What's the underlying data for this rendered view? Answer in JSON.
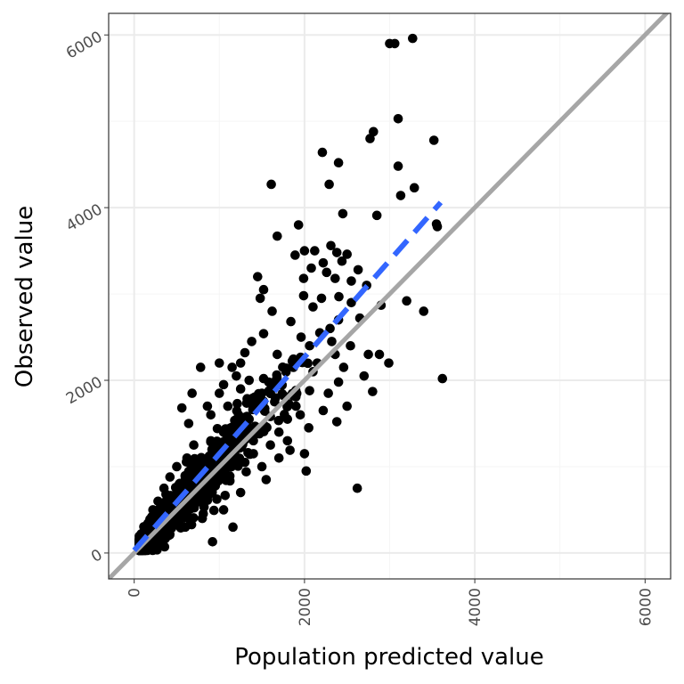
{
  "chart_data": {
    "type": "scatter",
    "title": "",
    "xlabel": "Population predicted value",
    "ylabel": "Observed value",
    "xlim": [
      -300,
      6300
    ],
    "ylim": [
      -300,
      6250
    ],
    "x_ticks": [
      0,
      2000,
      4000,
      6000
    ],
    "y_ticks": [
      0,
      2000,
      4000,
      6000
    ],
    "x_tick_labels": [
      "0",
      "2000",
      "4000",
      "6000"
    ],
    "y_tick_labels": [
      "0",
      "2000",
      "4000",
      "6000"
    ],
    "grid": true,
    "legend": "none",
    "colors": {
      "points": "#000000",
      "identity_line": "#a6a6a6",
      "fit_line": "#3366ff",
      "grid_major": "#ebebeb",
      "grid_minor": "#f5f5f5",
      "panel_border": "#333333"
    },
    "reference_lines": [
      {
        "kind": "identity",
        "slope": 1,
        "intercept": 0,
        "style": "solid"
      },
      {
        "kind": "fit",
        "x": [
          0,
          3600
        ],
        "y": [
          30,
          4060
        ],
        "style": "dashed"
      }
    ],
    "points": [
      [
        3000,
        5900
      ],
      [
        3060,
        5900
      ],
      [
        3270,
        5960
      ],
      [
        3100,
        5030
      ],
      [
        2810,
        4880
      ],
      [
        2770,
        4800
      ],
      [
        3520,
        4780
      ],
      [
        3100,
        4480
      ],
      [
        2400,
        4520
      ],
      [
        2210,
        4640
      ],
      [
        1610,
        4270
      ],
      [
        2290,
        4270
      ],
      [
        3290,
        4230
      ],
      [
        3130,
        4140
      ],
      [
        2450,
        3930
      ],
      [
        2850,
        3910
      ],
      [
        3550,
        3810
      ],
      [
        3560,
        3780
      ],
      [
        1930,
        3800
      ],
      [
        1680,
        3670
      ],
      [
        1890,
        3450
      ],
      [
        2000,
        3500
      ],
      [
        2120,
        3500
      ],
      [
        2310,
        3560
      ],
      [
        2380,
        3480
      ],
      [
        2500,
        3460
      ],
      [
        2220,
        3360
      ],
      [
        2440,
        3380
      ],
      [
        2630,
        3280
      ],
      [
        1450,
        3200
      ],
      [
        1520,
        3050
      ],
      [
        1990,
        3180
      ],
      [
        2080,
        3300
      ],
      [
        2260,
        3250
      ],
      [
        2360,
        3180
      ],
      [
        2550,
        3150
      ],
      [
        2730,
        3100
      ],
      [
        3200,
        2920
      ],
      [
        3400,
        2800
      ],
      [
        3620,
        2020
      ],
      [
        2800,
        1870
      ],
      [
        2990,
        2200
      ],
      [
        2880,
        2300
      ],
      [
        2540,
        2400
      ],
      [
        2360,
        2300
      ],
      [
        2460,
        2150
      ],
      [
        2400,
        1980
      ],
      [
        2280,
        1850
      ],
      [
        2500,
        1700
      ],
      [
        2620,
        750
      ],
      [
        2020,
        950
      ],
      [
        1830,
        1190
      ],
      [
        2000,
        1150
      ],
      [
        1470,
        1380
      ],
      [
        1160,
        300
      ],
      [
        920,
        130
      ],
      [
        1680,
        2300
      ],
      [
        1520,
        2020
      ],
      [
        1760,
        1820
      ],
      [
        1870,
        2150
      ],
      [
        2060,
        1880
      ],
      [
        2150,
        2200
      ],
      [
        2220,
        1650
      ],
      [
        2380,
        1520
      ],
      [
        1960,
        2500
      ],
      [
        1840,
        2680
      ],
      [
        1620,
        2800
      ],
      [
        1520,
        2540
      ],
      [
        1480,
        2950
      ],
      [
        2100,
        2850
      ],
      [
        1990,
        2980
      ],
      [
        2200,
        2950
      ],
      [
        2550,
        2900
      ],
      [
        2650,
        2720
      ],
      [
        2400,
        2700
      ],
      [
        2300,
        2600
      ],
      [
        1380,
        2450
      ],
      [
        1300,
        2320
      ],
      [
        1250,
        2200
      ],
      [
        1150,
        2150
      ],
      [
        1000,
        2200
      ],
      [
        780,
        2150
      ],
      [
        680,
        1850
      ],
      [
        560,
        1680
      ],
      [
        640,
        1500
      ],
      [
        1100,
        1700
      ],
      [
        900,
        1600
      ],
      [
        1250,
        1900
      ],
      [
        1400,
        1700
      ],
      [
        1600,
        1580
      ],
      [
        1700,
        1400
      ],
      [
        1800,
        1300
      ],
      [
        1950,
        1600
      ],
      [
        1700,
        1100
      ],
      [
        1500,
        1000
      ],
      [
        1250,
        700
      ],
      [
        1050,
        500
      ],
      [
        800,
        400
      ],
      [
        600,
        300
      ],
      [
        400,
        200
      ],
      [
        300,
        100
      ],
      [
        1900,
        1700
      ],
      [
        2050,
        1450
      ],
      [
        1400,
        1300
      ],
      [
        1350,
        1550
      ],
      [
        2100,
        2100
      ],
      [
        2750,
        2300
      ],
      [
        2700,
        2050
      ],
      [
        1000,
        1850
      ],
      [
        860,
        1700
      ],
      [
        1300,
        1050
      ],
      [
        1550,
        850
      ],
      [
        1150,
        1100
      ],
      [
        700,
        1250
      ],
      [
        620,
        1100
      ],
      [
        500,
        1000
      ],
      [
        420,
        880
      ],
      [
        350,
        750
      ],
      [
        280,
        600
      ],
      [
        220,
        500
      ],
      [
        900,
        1300
      ],
      [
        1050,
        1400
      ],
      [
        1220,
        1250
      ],
      [
        1400,
        1150
      ],
      [
        1600,
        1250
      ],
      [
        1800,
        1550
      ],
      [
        1650,
        1750
      ],
      [
        1500,
        1850
      ],
      [
        1350,
        2000
      ],
      [
        1200,
        2050
      ],
      [
        1050,
        1950
      ],
      [
        2320,
        2450
      ],
      [
        2180,
        2550
      ],
      [
        2060,
        2400
      ]
    ],
    "dense_clusters": [
      {
        "x_mean": 800,
        "y_mean": 800,
        "spread_along": 700,
        "spread_across": 180,
        "count": 1800,
        "slope": 1.05
      }
    ]
  }
}
